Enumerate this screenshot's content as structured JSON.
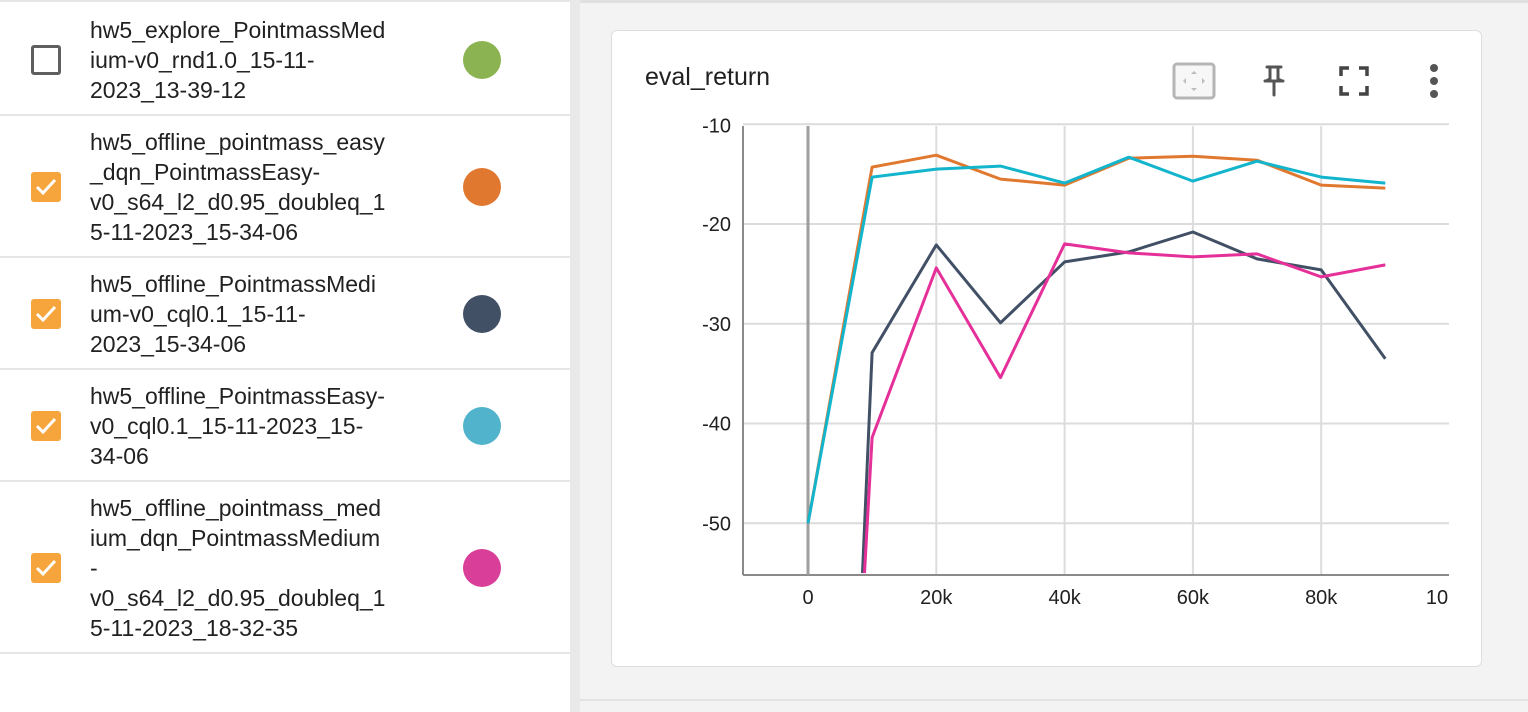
{
  "runs": [
    {
      "name": "hw5_explore_PointmassMed\nium-v0_rnd1.0_15-11-\n2023_13-39-12",
      "checked": false,
      "color": "#8bb352"
    },
    {
      "name": "hw5_offline_pointmass_easy\n_dqn_PointmassEasy-\nv0_s64_l2_d0.95_doubleq_1\n5-11-2023_15-34-06",
      "checked": true,
      "color": "#e0782f"
    },
    {
      "name": "hw5_offline_PointmassMedi\num-v0_cql0.1_15-11-\n2023_15-34-06",
      "checked": true,
      "color": "#425066"
    },
    {
      "name": "hw5_offline_PointmassEasy-\nv0_cql0.1_15-11-2023_15-\n34-06",
      "checked": true,
      "color": "#52b3cc"
    },
    {
      "name": "hw5_offline_pointmass_med\nium_dqn_PointmassMedium\n-\nv0_s64_l2_d0.95_doubleq_1\n5-11-2023_18-32-35",
      "checked": true,
      "color": "#d93f98"
    }
  ],
  "card": {
    "title": "eval_return",
    "buttons": [
      "fit-domain-icon",
      "pin-icon",
      "fullscreen-icon",
      "more-vert-icon"
    ]
  },
  "chart_data": {
    "type": "line",
    "x_tick_labels": [
      "0",
      "20k",
      "40k",
      "60k",
      "80k",
      "10"
    ],
    "y_tick_labels": [
      "-10",
      "-20",
      "-30",
      "-40",
      "-50"
    ],
    "xlim": [
      -10000,
      100000
    ],
    "ylim": [
      -55,
      -10
    ],
    "grid": true,
    "series": [
      {
        "color": "#e0782f",
        "x": [
          0,
          10000,
          20000,
          30000,
          40000,
          50000,
          60000,
          70000,
          80000,
          90000
        ],
        "y": [
          -50,
          -14.3,
          -13.1,
          -15.5,
          -16.1,
          -13.4,
          -13.2,
          -13.6,
          -16.1,
          -16.4
        ]
      },
      {
        "color": "#13b5cc",
        "x": [
          0,
          10000,
          20000,
          30000,
          40000,
          50000,
          60000,
          70000,
          80000,
          90000
        ],
        "y": [
          -50,
          -15.3,
          -14.5,
          -14.2,
          -15.9,
          -13.3,
          -15.7,
          -13.7,
          -15.3,
          -15.9
        ]
      },
      {
        "color": "#425066",
        "x": [
          8500,
          10000,
          20000,
          30000,
          40000,
          50000,
          60000,
          70000,
          80000,
          90000
        ],
        "y": [
          -55,
          -32.9,
          -22.1,
          -29.9,
          -23.8,
          -22.8,
          -20.8,
          -23.5,
          -24.6,
          -33.5
        ]
      },
      {
        "color": "#e5309a",
        "x": [
          8800,
          10000,
          20000,
          30000,
          40000,
          50000,
          60000,
          70000,
          80000,
          90000
        ],
        "y": [
          -55,
          -41.4,
          -24.4,
          -35.4,
          -22,
          -22.9,
          -23.3,
          -23,
          -25.3,
          -24.1
        ]
      }
    ]
  }
}
